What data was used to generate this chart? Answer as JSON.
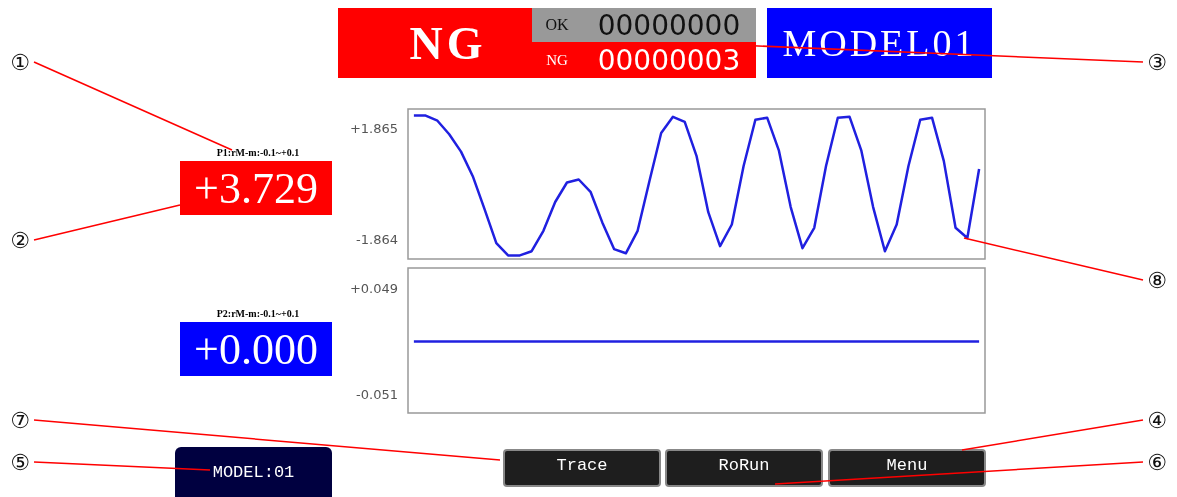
{
  "chart_data": [
    {
      "type": "other",
      "annotations": [
        "NG",
        "OK",
        "00000000",
        "NG",
        "00000003",
        "MODEL01"
      ]
    },
    {
      "type": "other",
      "annotations": [
        "P1:rM-m:-0.1~+0.1",
        "+3.729"
      ]
    },
    {
      "type": "line",
      "categories": [
        null,
        null,
        null,
        null,
        null,
        null,
        null,
        null,
        null,
        null,
        null,
        null,
        null,
        null,
        null,
        null,
        null,
        null,
        null,
        null,
        null,
        null,
        null,
        null,
        null,
        null,
        null,
        null,
        null,
        null,
        null,
        null,
        null,
        null,
        null,
        null,
        null,
        null,
        null,
        null,
        null,
        null,
        null,
        null,
        null,
        null,
        null,
        null,
        null
      ],
      "series": [
        {
          "color": "#2020e0",
          "values": [
            2.28,
            2.28,
            2.11,
            1.66,
            1.08,
            0.26,
            -0.84,
            -1.97,
            -2.38,
            -2.38,
            -2.24,
            -1.56,
            -0.6,
            0.05,
            0.15,
            -0.26,
            -1.28,
            -2.17,
            -2.31,
            -1.56,
            0.09,
            1.7,
            2.24,
            2.07,
            0.94,
            -0.94,
            -2.07,
            -1.35,
            0.6,
            2.14,
            2.21,
            1.11,
            -0.77,
            -2.14,
            -1.46,
            0.6,
            2.21,
            2.24,
            1.11,
            -0.77,
            -2.24,
            -1.35,
            0.6,
            2.14,
            2.21,
            0.77,
            -1.46,
            -1.8,
            0.5
          ]
        }
      ],
      "ylim": [
        -2.5,
        2.5
      ],
      "yticks": [
        {
          "value": 1.865,
          "label": "+1.865"
        },
        {
          "value": -1.864,
          "label": "-1.864"
        }
      ]
    },
    {
      "type": "other",
      "annotations": [
        "P2:rM-m:-0.1~+0.1",
        "+0.000"
      ]
    },
    {
      "type": "line",
      "categories": [
        null,
        null,
        null,
        null,
        null,
        null,
        null,
        null,
        null,
        null,
        null,
        null,
        null,
        null,
        null,
        null,
        null,
        null,
        null,
        null,
        null,
        null,
        null,
        null,
        null,
        null,
        null,
        null,
        null,
        null,
        null,
        null,
        null,
        null,
        null,
        null,
        null,
        null,
        null,
        null,
        null,
        null,
        null,
        null,
        null,
        null,
        null,
        null,
        null
      ],
      "series": [
        {
          "color": "#2020e0",
          "values": [
            -0.001,
            -0.001,
            -0.001,
            -0.001,
            -0.001,
            -0.001,
            -0.001,
            -0.001,
            -0.001,
            -0.001,
            -0.001,
            -0.001,
            -0.001,
            -0.001,
            -0.001,
            -0.001,
            -0.001,
            -0.001,
            -0.001,
            -0.001,
            -0.001,
            -0.001,
            -0.001,
            -0.001,
            -0.001,
            -0.001,
            -0.001,
            -0.001,
            -0.001,
            -0.001,
            -0.001,
            -0.001,
            -0.001,
            -0.001,
            -0.001,
            -0.001,
            -0.001,
            -0.001,
            -0.001,
            -0.001,
            -0.001,
            -0.001,
            -0.001,
            -0.001,
            -0.001,
            -0.001,
            -0.001,
            -0.001,
            -0.001
          ]
        }
      ],
      "ylim": [
        -0.068,
        0.068
      ],
      "yticks": [
        {
          "value": 0.049,
          "label": "+0.049"
        },
        {
          "value": -0.051,
          "label": "-0.051"
        }
      ]
    },
    {
      "type": "other",
      "annotations": [
        "MODEL:01",
        "Trace",
        "RoRun",
        "Menu"
      ]
    },
    {
      "type": "other",
      "annotations": [
        "①",
        "②",
        "③",
        "④",
        "⑤",
        "⑥",
        "⑦",
        "⑧"
      ]
    }
  ]
}
